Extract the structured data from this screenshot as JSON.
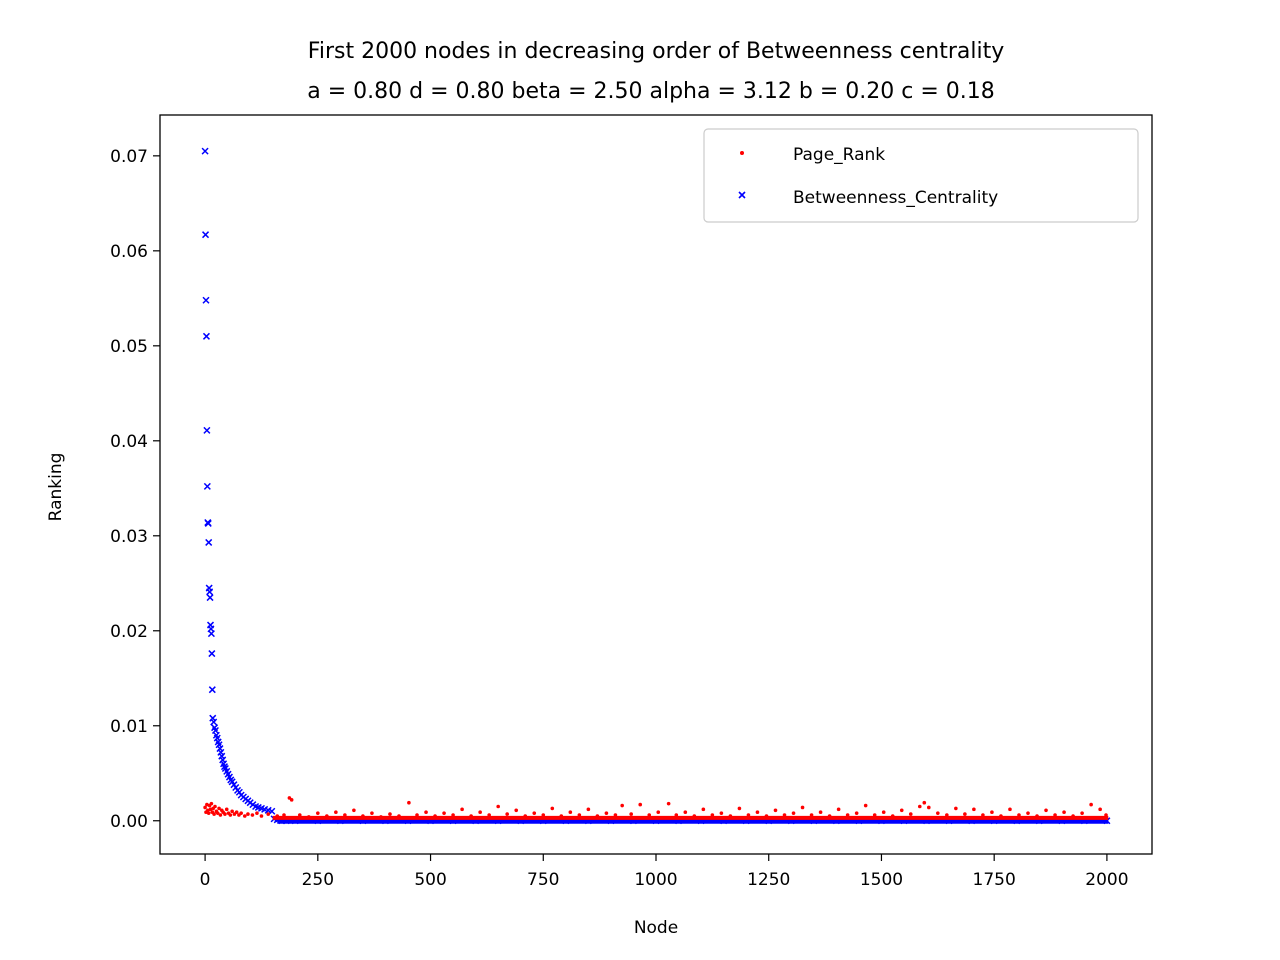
{
  "chart_data": {
    "type": "scatter",
    "title": "First 2000 nodes in decreasing order of Betweenness centrality",
    "subtitle": "a = 0.80 d = 0.80 beta = 2.50 alpha = 3.12 b = 0.20 c = 0.18",
    "xlabel": "Node",
    "ylabel": "Ranking",
    "xlim": [
      -100,
      2100
    ],
    "ylim": [
      -0.0035,
      0.0743
    ],
    "x_ticks": [
      0,
      250,
      500,
      750,
      1000,
      1250,
      1500,
      1750,
      2000
    ],
    "x_tick_labels": [
      "0",
      "250",
      "500",
      "750",
      "1000",
      "1250",
      "1500",
      "1750",
      "2000"
    ],
    "y_ticks": [
      0.0,
      0.01,
      0.02,
      0.03,
      0.04,
      0.05,
      0.06,
      0.07
    ],
    "y_tick_labels": [
      "0.00",
      "0.01",
      "0.02",
      "0.03",
      "0.04",
      "0.05",
      "0.06",
      "0.07"
    ],
    "grid": false,
    "legend_position": "top-right",
    "series": [
      {
        "name": "Page_Rank",
        "marker": "dot",
        "color": "#ff0000",
        "points": [
          [
            0,
            0.0014
          ],
          [
            2,
            0.0009
          ],
          [
            4,
            0.0017
          ],
          [
            6,
            0.0011
          ],
          [
            8,
            0.0008
          ],
          [
            10,
            0.0016
          ],
          [
            12,
            0.0012
          ],
          [
            14,
            0.0018
          ],
          [
            16,
            0.0009
          ],
          [
            18,
            0.0013
          ],
          [
            20,
            0.0007
          ],
          [
            22,
            0.0015
          ],
          [
            25,
            0.001
          ],
          [
            28,
            0.0008
          ],
          [
            31,
            0.0013
          ],
          [
            34,
            0.0006
          ],
          [
            37,
            0.0011
          ],
          [
            40,
            0.0009
          ],
          [
            44,
            0.0007
          ],
          [
            48,
            0.0012
          ],
          [
            52,
            0.0008
          ],
          [
            56,
            0.0006
          ],
          [
            60,
            0.001
          ],
          [
            65,
            0.0007
          ],
          [
            70,
            0.0009
          ],
          [
            75,
            0.0006
          ],
          [
            80,
            0.0008
          ],
          [
            88,
            0.0005
          ],
          [
            95,
            0.0007
          ],
          [
            105,
            0.0006
          ],
          [
            115,
            0.0008
          ],
          [
            125,
            0.0005
          ],
          [
            140,
            0.0007
          ],
          [
            160,
            0.0005
          ],
          [
            175,
            0.0006
          ],
          [
            187,
            0.0024
          ],
          [
            192,
            0.0022
          ],
          [
            210,
            0.0006
          ],
          [
            230,
            0.0004
          ],
          [
            250,
            0.0008
          ],
          [
            270,
            0.0005
          ],
          [
            290,
            0.0009
          ],
          [
            310,
            0.0006
          ],
          [
            330,
            0.0011
          ],
          [
            350,
            0.0005
          ],
          [
            370,
            0.0008
          ],
          [
            390,
            0.0004
          ],
          [
            410,
            0.0007
          ],
          [
            430,
            0.0005
          ],
          [
            452,
            0.0019
          ],
          [
            470,
            0.0006
          ],
          [
            490,
            0.0009
          ],
          [
            510,
            0.0005
          ],
          [
            530,
            0.0008
          ],
          [
            550,
            0.0006
          ],
          [
            570,
            0.0012
          ],
          [
            590,
            0.0005
          ],
          [
            610,
            0.0009
          ],
          [
            630,
            0.0006
          ],
          [
            650,
            0.0015
          ],
          [
            670,
            0.0007
          ],
          [
            690,
            0.0011
          ],
          [
            710,
            0.0005
          ],
          [
            730,
            0.0008
          ],
          [
            750,
            0.0006
          ],
          [
            770,
            0.0013
          ],
          [
            790,
            0.0005
          ],
          [
            810,
            0.0009
          ],
          [
            830,
            0.0006
          ],
          [
            850,
            0.0012
          ],
          [
            870,
            0.0005
          ],
          [
            890,
            0.0008
          ],
          [
            910,
            0.0006
          ],
          [
            925,
            0.0016
          ],
          [
            945,
            0.0007
          ],
          [
            965,
            0.0017
          ],
          [
            985,
            0.0006
          ],
          [
            1005,
            0.0009
          ],
          [
            1028,
            0.0018
          ],
          [
            1045,
            0.0006
          ],
          [
            1065,
            0.0009
          ],
          [
            1085,
            0.0005
          ],
          [
            1105,
            0.0012
          ],
          [
            1125,
            0.0006
          ],
          [
            1145,
            0.0008
          ],
          [
            1165,
            0.0005
          ],
          [
            1185,
            0.0013
          ],
          [
            1205,
            0.0006
          ],
          [
            1225,
            0.0009
          ],
          [
            1245,
            0.0005
          ],
          [
            1265,
            0.0011
          ],
          [
            1285,
            0.0006
          ],
          [
            1305,
            0.0008
          ],
          [
            1325,
            0.0014
          ],
          [
            1345,
            0.0006
          ],
          [
            1365,
            0.0009
          ],
          [
            1385,
            0.0005
          ],
          [
            1405,
            0.0012
          ],
          [
            1425,
            0.0006
          ],
          [
            1445,
            0.0008
          ],
          [
            1465,
            0.0016
          ],
          [
            1485,
            0.0006
          ],
          [
            1505,
            0.0009
          ],
          [
            1525,
            0.0005
          ],
          [
            1545,
            0.0011
          ],
          [
            1565,
            0.0007
          ],
          [
            1585,
            0.0015
          ],
          [
            1595,
            0.0019
          ],
          [
            1605,
            0.0014
          ],
          [
            1625,
            0.0008
          ],
          [
            1645,
            0.0006
          ],
          [
            1665,
            0.0013
          ],
          [
            1685,
            0.0007
          ],
          [
            1705,
            0.0012
          ],
          [
            1725,
            0.0006
          ],
          [
            1745,
            0.0009
          ],
          [
            1765,
            0.0005
          ],
          [
            1785,
            0.0012
          ],
          [
            1805,
            0.0006
          ],
          [
            1825,
            0.0008
          ],
          [
            1845,
            0.0005
          ],
          [
            1865,
            0.0011
          ],
          [
            1885,
            0.0006
          ],
          [
            1905,
            0.0009
          ],
          [
            1925,
            0.0005
          ],
          [
            1945,
            0.0008
          ],
          [
            1965,
            0.0017
          ],
          [
            1985,
            0.0012
          ],
          [
            1998,
            0.0006
          ]
        ]
      },
      {
        "name": "Betweenness_Centrality",
        "marker": "x",
        "color": "#0000ff",
        "points": [
          [
            0,
            0.0705
          ],
          [
            1,
            0.0617
          ],
          [
            2,
            0.0548
          ],
          [
            3,
            0.051
          ],
          [
            4,
            0.0411
          ],
          [
            5,
            0.0352
          ],
          [
            6,
            0.0314
          ],
          [
            7,
            0.0313
          ],
          [
            8,
            0.0293
          ],
          [
            9,
            0.0245
          ],
          [
            10,
            0.0241
          ],
          [
            11,
            0.0235
          ],
          [
            12,
            0.0206
          ],
          [
            13,
            0.0202
          ],
          [
            14,
            0.0197
          ],
          [
            15,
            0.0176
          ],
          [
            16,
            0.0138
          ],
          [
            17,
            0.0108
          ],
          [
            19,
            0.0104
          ],
          [
            21,
            0.0098
          ],
          [
            23,
            0.0095
          ],
          [
            25,
            0.009
          ],
          [
            27,
            0.0087
          ],
          [
            29,
            0.0083
          ],
          [
            31,
            0.008
          ],
          [
            33,
            0.0076
          ],
          [
            35,
            0.0072
          ],
          [
            37,
            0.0068
          ],
          [
            39,
            0.0064
          ],
          [
            41,
            0.006
          ],
          [
            43,
            0.0057
          ],
          [
            45,
            0.0055
          ],
          [
            48,
            0.0052
          ],
          [
            51,
            0.0049
          ],
          [
            54,
            0.0046
          ],
          [
            57,
            0.0043
          ],
          [
            60,
            0.0041
          ],
          [
            64,
            0.0038
          ],
          [
            68,
            0.0035
          ],
          [
            72,
            0.0032
          ],
          [
            76,
            0.003
          ],
          [
            80,
            0.0027
          ],
          [
            85,
            0.0025
          ],
          [
            90,
            0.0023
          ],
          [
            95,
            0.0021
          ],
          [
            100,
            0.0019
          ],
          [
            106,
            0.0017
          ],
          [
            112,
            0.0015
          ],
          [
            118,
            0.0014
          ],
          [
            125,
            0.0013
          ],
          [
            132,
            0.0012
          ],
          [
            140,
            0.0011
          ],
          [
            148,
            0.001
          ],
          [
            153,
            0.0002
          ],
          [
            160,
            0.0001
          ],
          [
            170,
            0.0
          ],
          [
            180,
            0.0
          ],
          [
            200,
            0.0
          ],
          [
            250,
            0.0
          ],
          [
            300,
            0.0
          ],
          [
            350,
            0.0
          ],
          [
            400,
            0.0
          ],
          [
            450,
            0.0
          ],
          [
            500,
            0.0
          ],
          [
            550,
            0.0
          ],
          [
            600,
            0.0
          ],
          [
            650,
            0.0
          ],
          [
            700,
            0.0
          ],
          [
            750,
            0.0
          ],
          [
            800,
            0.0
          ],
          [
            850,
            0.0
          ],
          [
            900,
            0.0
          ],
          [
            950,
            0.0
          ],
          [
            1000,
            0.0
          ],
          [
            1050,
            0.0
          ],
          [
            1100,
            0.0
          ],
          [
            1150,
            0.0
          ],
          [
            1200,
            0.0
          ],
          [
            1250,
            0.0
          ],
          [
            1300,
            0.0
          ],
          [
            1350,
            0.0
          ],
          [
            1400,
            0.0
          ],
          [
            1450,
            0.0
          ],
          [
            1500,
            0.0
          ],
          [
            1550,
            0.0
          ],
          [
            1600,
            0.0
          ],
          [
            1650,
            0.0
          ],
          [
            1700,
            0.0
          ],
          [
            1750,
            0.0
          ],
          [
            1800,
            0.0
          ],
          [
            1850,
            0.0
          ],
          [
            1900,
            0.0
          ],
          [
            1950,
            0.0
          ],
          [
            2000,
            0.0
          ]
        ]
      }
    ]
  }
}
